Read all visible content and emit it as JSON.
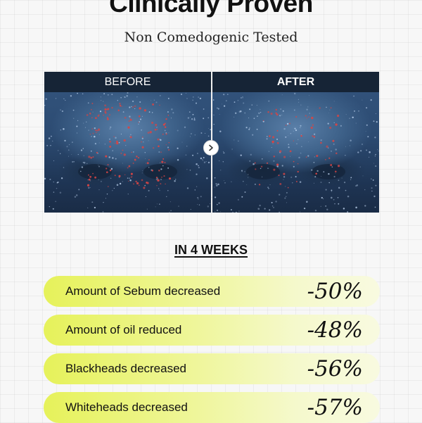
{
  "header": {
    "title": "Clinically Proven",
    "subtitle": "Non Comedogenic Tested"
  },
  "comparison": {
    "before_label": "BEFORE",
    "after_label": "AFTER",
    "arrow_icon": "chevron-right-icon",
    "colors": {
      "label_bar": "#162436",
      "skin_tone": "#3a5f88",
      "pore_red": "#d64545",
      "pore_light": "#cfe4ff"
    }
  },
  "results": {
    "period": "IN 4 WEEKS",
    "items": [
      {
        "label": "Amount of Sebum decreased",
        "value": "-50%"
      },
      {
        "label": "Amount of oil reduced",
        "value": "-48%"
      },
      {
        "label": "Blackheads decreased",
        "value": "-56%"
      },
      {
        "label": "Whiteheads decreased",
        "value": "-57%"
      }
    ],
    "colors": {
      "pill_start": "#e6f25a",
      "pill_end": "#f8fae0"
    }
  }
}
